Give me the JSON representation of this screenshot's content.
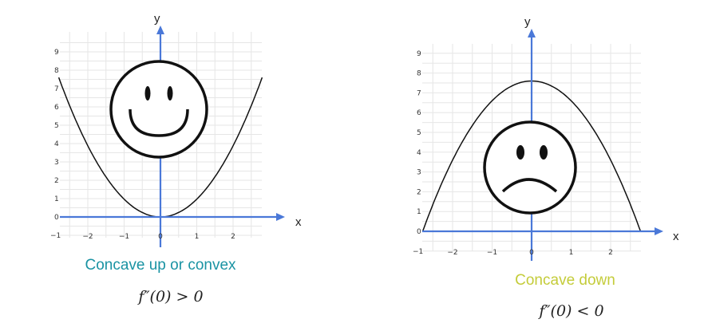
{
  "chart_data": [
    {
      "type": "line",
      "title": "",
      "xlabel": "x",
      "ylabel": "y",
      "xlim": [
        -2.8,
        2.8
      ],
      "ylim": [
        -1,
        9.6
      ],
      "xticks": [
        -2,
        -1,
        0,
        1,
        2
      ],
      "yticks": [
        -1,
        0,
        1,
        2,
        3,
        4,
        5,
        6,
        7,
        8,
        9
      ],
      "grid": true,
      "series": [
        {
          "x": [
            -2.8,
            -2,
            -1,
            0,
            1,
            2,
            2.8
          ],
          "y": [
            7.6,
            3.9,
            0.97,
            0,
            0.97,
            3.9,
            7.6
          ]
        }
      ],
      "icon": "smiley-face-icon",
      "caption": "Concave up or convex",
      "caption_color": "#1a93a3",
      "formula": "f″(0) > 0"
    },
    {
      "type": "line",
      "title": "",
      "xlabel": "x",
      "ylabel": "y",
      "xlim": [
        -2.8,
        3.0
      ],
      "ylim": [
        -1,
        9.6
      ],
      "xticks": [
        -2,
        -1,
        0,
        1,
        2
      ],
      "yticks": [
        -1,
        0,
        1,
        2,
        3,
        4,
        5,
        6,
        7,
        8,
        9
      ],
      "grid": true,
      "series": [
        {
          "x": [
            -2.76,
            -2,
            -1,
            0,
            1,
            2,
            2.76
          ],
          "y": [
            0,
            3.6,
            6.6,
            7.6,
            6.6,
            3.6,
            0
          ]
        }
      ],
      "icon": "frowning-face-icon",
      "caption": "Concave down",
      "caption_color": "#c4cc3a",
      "formula": "f″(0) < 0"
    }
  ],
  "colors": {
    "axis": "#4a78d8",
    "grid": "#e6e6e6",
    "curve": "#111111"
  }
}
